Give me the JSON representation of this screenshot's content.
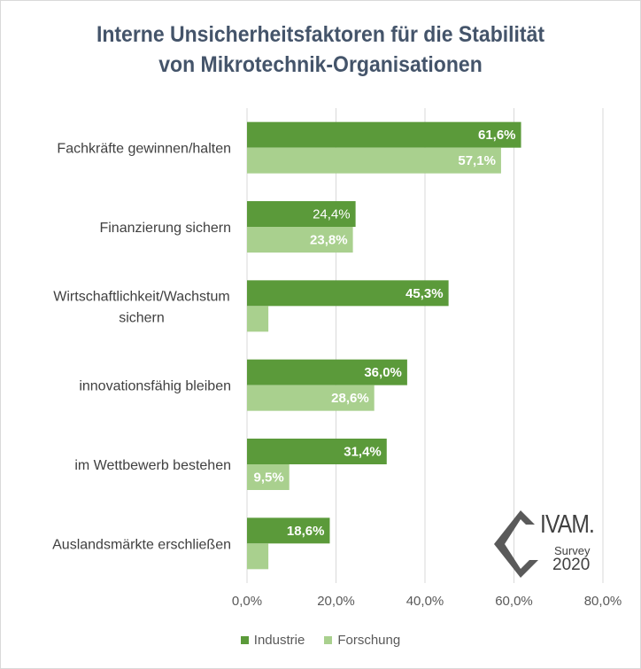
{
  "title": {
    "line1": "Interne Unsicherheitsfaktoren für die Stabilität",
    "line2": "von Mikrotechnik-Organisationen"
  },
  "colors": {
    "industrie": "#5b9a3a",
    "forschung": "#a9d08e",
    "grid": "#d9d9d9",
    "axis_text": "#595959",
    "title": "#44546a"
  },
  "logo": {
    "brand": "IVAM.",
    "survey": "Survey",
    "year": "2020"
  },
  "chart_data": {
    "type": "bar",
    "orientation": "horizontal",
    "categories": [
      "Fachkräfte gewinnen/halten",
      "Finanzierung sichern",
      "Wirtschaftlichkeit/Wachstum sichern",
      "innovationsfähig bleiben",
      "im Wettbewerb bestehen",
      "Auslandsmärkte erschließen"
    ],
    "series": [
      {
        "name": "Industrie",
        "values": [
          61.6,
          24.4,
          45.3,
          36.0,
          31.4,
          18.6
        ],
        "labels": [
          "61,6%",
          "24,4%",
          "45,3%",
          "36,0%",
          "31,4%",
          "18,6%"
        ]
      },
      {
        "name": "Forschung",
        "values": [
          57.1,
          23.8,
          4.8,
          28.6,
          9.5,
          4.8
        ],
        "labels": [
          "57,1%",
          "23,8%",
          "",
          "28,6%",
          "9,5%",
          ""
        ]
      }
    ],
    "xlim": [
      0,
      80
    ],
    "x_ticks": [
      "0,0%",
      "20,0%",
      "40,0%",
      "60,0%",
      "80,0%"
    ],
    "grid": true,
    "legend_position": "bottom"
  }
}
